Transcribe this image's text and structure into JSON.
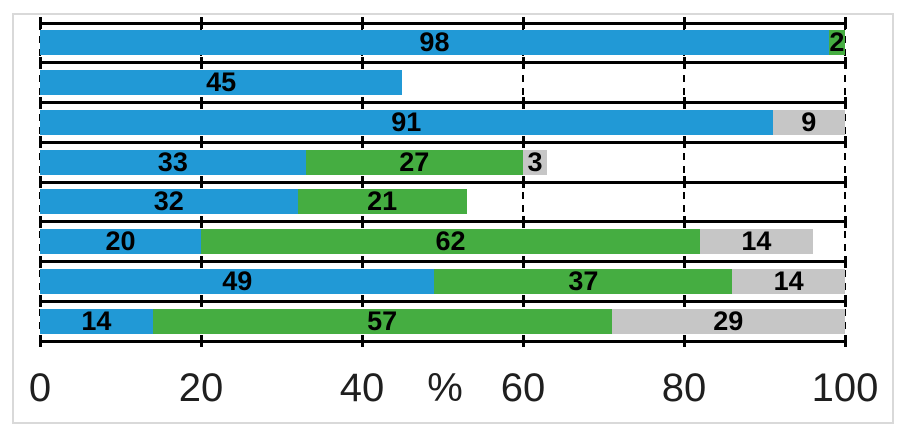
{
  "chart_data": {
    "type": "bar",
    "orientation": "horizontal",
    "stacked": true,
    "title": "",
    "xlabel": "%",
    "xlim": [
      0,
      100
    ],
    "x_ticks": [
      0,
      20,
      40,
      60,
      80,
      100
    ],
    "gridlines": "vertical-dashed",
    "row_boundary_lines": true,
    "legend": false,
    "data_labels": "centered-bold-black",
    "series": [
      {
        "name": "blue",
        "color": "#2199d6",
        "values": [
          98,
          45,
          91,
          33,
          32,
          20,
          49,
          14
        ]
      },
      {
        "name": "green",
        "color": "#45ad41",
        "values": [
          2,
          0,
          0,
          27,
          21,
          62,
          37,
          57
        ]
      },
      {
        "name": "gray",
        "color": "#c6c6c6",
        "values": [
          0,
          0,
          9,
          3,
          0,
          14,
          14,
          29
        ]
      }
    ]
  },
  "style": {
    "background_color": "#ffffff",
    "frame_border_color": "#d9d9d9",
    "boundary_line_color": "#000000",
    "gridline_color": "#000000",
    "bar_label_color": "#000000",
    "axis_label_color": "#1f1f1f"
  }
}
